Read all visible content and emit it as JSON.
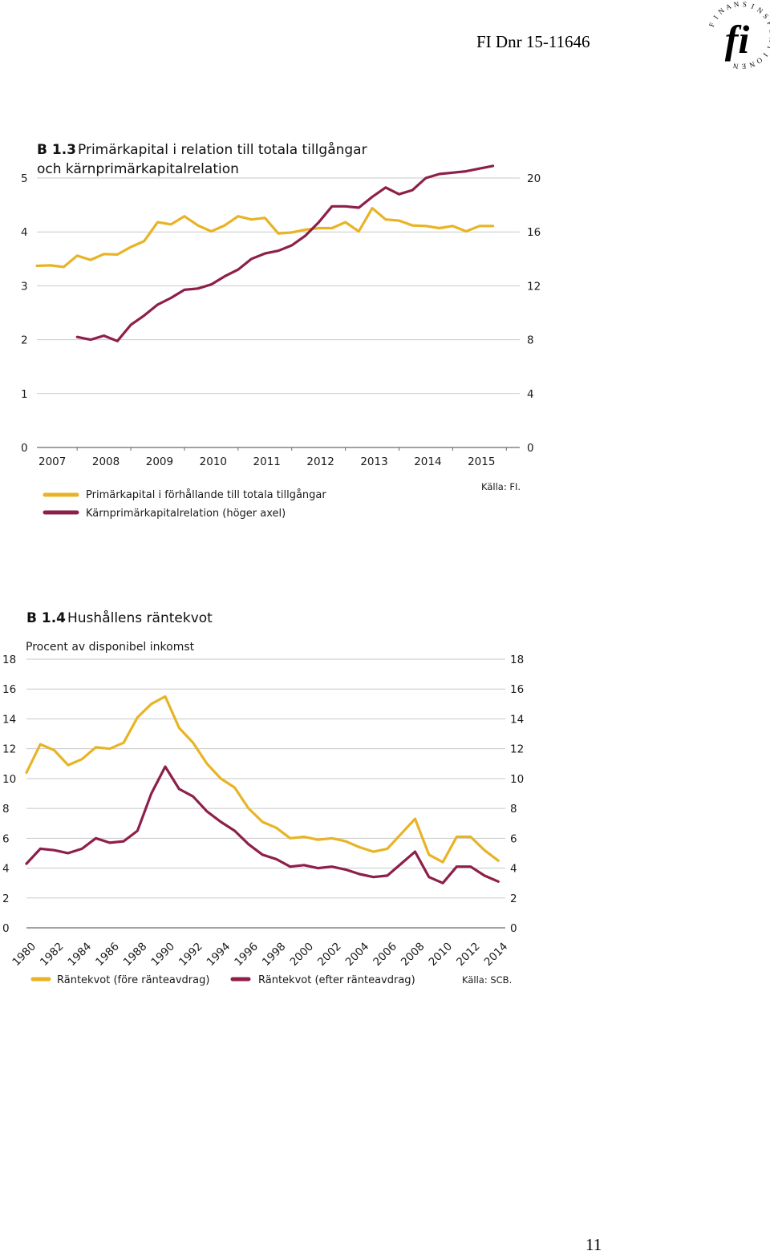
{
  "header": {
    "doc_ref": "FI Dnr 15-11646",
    "logo_letters": "FINANSINSPEKTIONEN",
    "logo_mark": "fi"
  },
  "footer": {
    "page_number": "11"
  },
  "colors": {
    "yellow": "#E8B425",
    "maroon": "#8E1F4A",
    "grid": "#c9c9c9"
  },
  "chart_data": [
    {
      "type": "line",
      "title_prefix": "B 1.3",
      "title_line1": "Primärkapital i relation till totala tillgångar",
      "title_line2": "och kärnprimärkapitalrelation",
      "source": "Källa: FI.",
      "xlabel": "",
      "ylabel": "",
      "x_ticks": [
        "2007",
        "2008",
        "2009",
        "2010",
        "2011",
        "2012",
        "2013",
        "2014",
        "2015"
      ],
      "y_left": {
        "ticks": [
          "0",
          "1",
          "2",
          "3",
          "4",
          "5"
        ],
        "lim": [
          0,
          5
        ]
      },
      "y_right": {
        "ticks": [
          "0",
          "4",
          "8",
          "12",
          "16",
          "20"
        ],
        "lim": [
          0,
          20
        ]
      },
      "grid": true,
      "legend_position": "bottom-left",
      "series": [
        {
          "name": "Primärkapital i förhållande till totala tillgångar",
          "axis": "left",
          "color": "#E8B425",
          "x": [
            2006.75,
            2007.0,
            2007.25,
            2007.5,
            2007.75,
            2008.0,
            2008.25,
            2008.5,
            2008.75,
            2009.0,
            2009.25,
            2009.5,
            2009.75,
            2010.0,
            2010.25,
            2010.5,
            2010.75,
            2011.0,
            2011.25,
            2011.5,
            2011.75,
            2012.0,
            2012.25,
            2012.5,
            2012.75,
            2013.0,
            2013.25,
            2013.5,
            2013.75,
            2014.0,
            2014.25,
            2014.5,
            2014.75,
            2015.0,
            2015.25
          ],
          "values": [
            3.37,
            3.38,
            3.35,
            3.56,
            3.48,
            3.59,
            3.58,
            3.72,
            3.83,
            4.18,
            4.14,
            4.29,
            4.12,
            4.01,
            4.12,
            4.29,
            4.23,
            4.26,
            3.97,
            3.99,
            4.04,
            4.07,
            4.07,
            4.18,
            4.01,
            4.44,
            4.23,
            4.21,
            4.12,
            4.11,
            4.07,
            4.11,
            4.01,
            4.11,
            4.11
          ]
        },
        {
          "name": "Kärnprimärkapitalrelation (höger axel)",
          "axis": "right",
          "color": "#8E1F4A",
          "x": [
            2007.5,
            2007.75,
            2008.0,
            2008.25,
            2008.5,
            2008.75,
            2009.0,
            2009.25,
            2009.5,
            2009.75,
            2010.0,
            2010.25,
            2010.5,
            2010.75,
            2011.0,
            2011.25,
            2011.5,
            2011.75,
            2012.0,
            2012.25,
            2012.5,
            2012.75,
            2013.0,
            2013.25,
            2013.5,
            2013.75,
            2014.0,
            2014.25,
            2014.5,
            2014.75,
            2015.0,
            2015.25
          ],
          "values": [
            8.2,
            8.0,
            8.3,
            7.9,
            9.1,
            9.8,
            10.6,
            11.1,
            11.7,
            11.8,
            12.1,
            12.7,
            13.2,
            14.0,
            14.4,
            14.6,
            15.0,
            15.7,
            16.7,
            17.9,
            17.9,
            17.8,
            18.6,
            19.3,
            18.8,
            19.1,
            20.0,
            20.3,
            20.4,
            20.5,
            20.7,
            20.9
          ]
        }
      ]
    },
    {
      "type": "line",
      "title_prefix": "B 1.4",
      "title_line1": "Hushållens räntekvot",
      "unit_label": "Procent av disponibel inkomst",
      "source": "Källa: SCB.",
      "xlabel": "",
      "ylabel": "",
      "x_ticks": [
        "1980",
        "1982",
        "1984",
        "1986",
        "1988",
        "1990",
        "1992",
        "1994",
        "1996",
        "1998",
        "2000",
        "2002",
        "2004",
        "2006",
        "2008",
        "2010",
        "2012",
        "2014"
      ],
      "y_left": {
        "ticks": [
          "0",
          "2",
          "4",
          "6",
          "8",
          "10",
          "12",
          "14",
          "16",
          "18"
        ],
        "lim": [
          0,
          18
        ]
      },
      "y_right": {
        "ticks": [
          "0",
          "2",
          "4",
          "6",
          "8",
          "10",
          "12",
          "14",
          "16",
          "18"
        ],
        "lim": [
          0,
          18
        ]
      },
      "grid": true,
      "legend_position": "bottom",
      "series": [
        {
          "name": "Räntekvot (före ränteavdrag)",
          "color": "#E8B425",
          "x": [
            1980,
            1981,
            1982,
            1983,
            1984,
            1985,
            1986,
            1987,
            1988,
            1989,
            1990,
            1991,
            1992,
            1993,
            1994,
            1995,
            1996,
            1997,
            1998,
            1999,
            2000,
            2001,
            2002,
            2003,
            2004,
            2005,
            2006,
            2007,
            2008,
            2009,
            2010,
            2011,
            2012,
            2013,
            2014
          ],
          "values": [
            10.4,
            12.3,
            11.9,
            10.9,
            11.3,
            12.1,
            12.0,
            12.4,
            14.1,
            15.0,
            15.5,
            13.4,
            12.4,
            11.0,
            10.0,
            9.4,
            8.0,
            7.1,
            6.7,
            6.0,
            6.1,
            5.9,
            6.0,
            5.8,
            5.4,
            5.1,
            5.3,
            6.3,
            7.3,
            4.9,
            4.4,
            6.1,
            6.1,
            5.2,
            4.5
          ]
        },
        {
          "name": "Räntekvot (efter ränteavdrag)",
          "color": "#8E1F4A",
          "x": [
            1980,
            1981,
            1982,
            1983,
            1984,
            1985,
            1986,
            1987,
            1988,
            1989,
            1990,
            1991,
            1992,
            1993,
            1994,
            1995,
            1996,
            1997,
            1998,
            1999,
            2000,
            2001,
            2002,
            2003,
            2004,
            2005,
            2006,
            2007,
            2008,
            2009,
            2010,
            2011,
            2012,
            2013,
            2014
          ],
          "values": [
            4.3,
            5.3,
            5.2,
            5.0,
            5.3,
            6.0,
            5.7,
            5.8,
            6.5,
            9.0,
            10.8,
            9.3,
            8.8,
            7.8,
            7.1,
            6.5,
            5.6,
            4.9,
            4.6,
            4.1,
            4.2,
            4.0,
            4.1,
            3.9,
            3.6,
            3.4,
            3.5,
            4.3,
            5.1,
            3.4,
            3.0,
            4.1,
            4.1,
            3.5,
            3.1
          ]
        }
      ]
    }
  ]
}
